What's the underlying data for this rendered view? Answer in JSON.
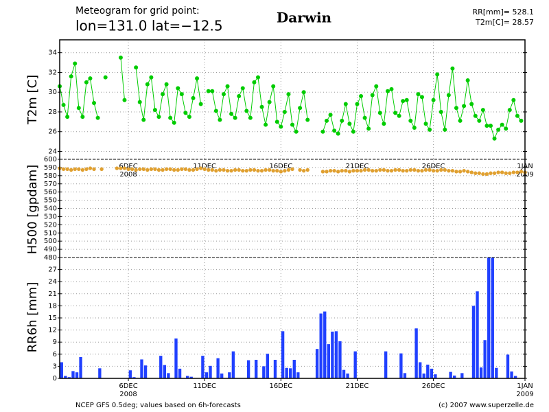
{
  "header": {
    "line1": "Meteogram for grid point:",
    "line2": "lon=131.0 lat=−12.5",
    "place": "Darwin",
    "stat1": "RR[mm]= 528.1",
    "stat2": "T2m[C]= 28.57"
  },
  "footer": {
    "left": "NCEP GFS 0.5deg; values based on 6h-forecasts",
    "right": "(c) 2007 www.superzelle.de"
  },
  "x_axis": {
    "categories": [
      null,
      null,
      null,
      null,
      null,
      null,
      null,
      null,
      null,
      null,
      null,
      null,
      null,
      null,
      null,
      null,
      null,
      null,
      null,
      null,
      null,
      null,
      null,
      null,
      null,
      null,
      null,
      null,
      null,
      null,
      null,
      null,
      null,
      null,
      null,
      null,
      null,
      null,
      null,
      null,
      null,
      null,
      null,
      null,
      null,
      null,
      null,
      null,
      null,
      null,
      null,
      null,
      null,
      null,
      null,
      null,
      null,
      null,
      null,
      null,
      null,
      null,
      null,
      null,
      null,
      null,
      null,
      null,
      null,
      null,
      null,
      null,
      null,
      null,
      null,
      null,
      null,
      null,
      null,
      null,
      null,
      null,
      null,
      null,
      null,
      null,
      null,
      null,
      null,
      null,
      null,
      null,
      null,
      null,
      null,
      null,
      null,
      null,
      null,
      null,
      null,
      null,
      null,
      null,
      null,
      null,
      null,
      null,
      null,
      null,
      null,
      null,
      null,
      null,
      null,
      null,
      null,
      null,
      null,
      null,
      null,
      null,
      null
    ],
    "xticks": [
      {
        "value": 18,
        "label": "6DEC",
        "sublabel": "2008"
      },
      {
        "value": 38,
        "label": "11DEC"
      },
      {
        "value": 58,
        "label": "16DEC"
      },
      {
        "value": 78,
        "label": "21DEC"
      },
      {
        "value": 98,
        "label": "26DEC"
      },
      {
        "value": 122,
        "label": "1JAN",
        "sublabel": "2009"
      }
    ],
    "grid": true
  },
  "chart_data": [
    {
      "type": "line",
      "ylabel": "T2m [C]",
      "color": "#00cc00",
      "ylim": [
        23.2,
        35.3
      ],
      "yticks": [
        24,
        26,
        28,
        30,
        32,
        34
      ],
      "grid": true,
      "values": [
        30.6,
        28.7,
        27.5,
        31.6,
        32.9,
        28.4,
        27.5,
        31.0,
        31.4,
        28.9,
        27.4,
        null,
        31.5,
        null,
        null,
        null,
        33.5,
        29.2,
        null,
        null,
        32.5,
        29.0,
        27.2,
        30.8,
        31.5,
        28.2,
        27.5,
        29.8,
        30.8,
        27.4,
        26.9,
        30.4,
        29.8,
        27.9,
        27.5,
        29.4,
        31.4,
        28.8,
        null,
        30.1,
        30.1,
        28.1,
        27.2,
        29.8,
        30.6,
        27.8,
        27.4,
        29.6,
        30.4,
        28.1,
        27.4,
        31.0,
        31.5,
        28.5,
        26.7,
        29.0,
        30.6,
        27.0,
        26.5,
        28.0,
        29.8,
        26.7,
        26.0,
        28.4,
        30.0,
        27.2,
        null,
        null,
        null,
        26.0,
        27.1,
        27.7,
        26.1,
        25.8,
        27.1,
        28.8,
        26.8,
        26.0,
        28.8,
        29.6,
        27.4,
        26.3,
        29.7,
        30.6,
        27.9,
        26.8,
        30.1,
        30.3,
        27.9,
        27.6,
        29.1,
        29.2,
        27.1,
        26.4,
        29.8,
        29.5,
        26.8,
        26.2,
        29.2,
        31.8,
        28.0,
        26.2,
        29.7,
        32.4,
        28.4,
        27.1,
        28.6,
        31.2,
        28.8,
        27.6,
        27.1,
        28.2,
        26.6,
        26.6,
        25.3,
        26.2,
        26.7,
        26.3,
        28.2,
        29.2,
        27.6,
        27.1,
        null
      ]
    },
    {
      "type": "scatter",
      "ylabel": "H500 [gpdam]",
      "color": "#e0a030",
      "ylim": [
        480,
        600
      ],
      "yticks": [
        480,
        490,
        500,
        510,
        520,
        530,
        540,
        550,
        560,
        570,
        580,
        590,
        600
      ],
      "grid": true,
      "values": [
        589,
        588,
        588,
        587,
        588,
        588,
        587,
        588,
        589,
        588,
        null,
        588,
        null,
        null,
        null,
        589,
        589,
        589,
        588,
        588,
        587,
        588,
        588,
        587,
        588,
        588,
        587,
        587,
        588,
        588,
        587,
        587,
        588,
        588,
        587,
        587,
        588,
        589,
        588,
        587,
        587,
        586,
        587,
        587,
        586,
        586,
        587,
        587,
        586,
        586,
        587,
        587,
        586,
        586,
        587,
        587,
        586,
        586,
        585,
        586,
        587,
        588,
        null,
        587,
        586,
        587,
        null,
        null,
        null,
        585,
        585,
        586,
        586,
        585,
        586,
        586,
        585,
        586,
        586,
        586,
        587,
        587,
        586,
        586,
        587,
        587,
        586,
        586,
        587,
        587,
        586,
        586,
        587,
        587,
        586,
        586,
        587,
        587,
        586,
        586,
        587,
        587,
        586,
        586,
        585,
        585,
        586,
        585,
        584,
        583,
        583,
        582,
        582,
        583,
        583,
        584,
        584,
        583,
        583,
        584,
        584,
        585,
        584
      ]
    },
    {
      "type": "bar",
      "ylabel": "RR6h [mm]",
      "color": "#2040ff",
      "ylim": [
        0,
        30
      ],
      "yticks": [
        0,
        3,
        6,
        9,
        12,
        15,
        18,
        21,
        24,
        27
      ],
      "grid": true,
      "values": [
        0,
        4,
        0.6,
        0.3,
        1.8,
        1.5,
        5.3,
        0,
        0,
        0,
        0,
        2.5,
        0,
        0,
        0,
        0,
        0,
        0,
        0,
        2,
        0.3,
        0,
        4.7,
        3.2,
        0,
        0,
        0,
        5.6,
        3.3,
        1.3,
        0,
        9.9,
        2.4,
        0,
        0.6,
        0.4,
        0,
        0,
        5.6,
        1.5,
        3.1,
        0,
        5,
        1.2,
        0,
        1.5,
        6.7,
        0,
        0,
        0,
        4.5,
        0,
        4.6,
        0,
        3,
        6.1,
        0,
        4.6,
        0,
        11.7,
        2.6,
        2.5,
        4.6,
        1.5,
        0,
        0,
        0,
        0,
        7.3,
        16.1,
        16.6,
        8.5,
        11.6,
        11.7,
        9.2,
        2.1,
        1.2,
        0,
        6.7,
        0,
        0,
        0,
        0,
        0,
        0,
        0,
        6.7,
        0,
        0,
        0,
        6.2,
        1.3,
        0,
        0,
        12.4,
        4,
        1.2,
        3.4,
        2.4,
        1,
        0,
        0,
        0,
        1.6,
        0.7,
        0,
        1.3,
        0,
        0,
        18,
        21.6,
        2.7,
        9.5,
        30,
        30,
        2.6,
        0,
        0,
        5.9,
        1.7,
        0.6,
        0,
        0
      ]
    }
  ]
}
